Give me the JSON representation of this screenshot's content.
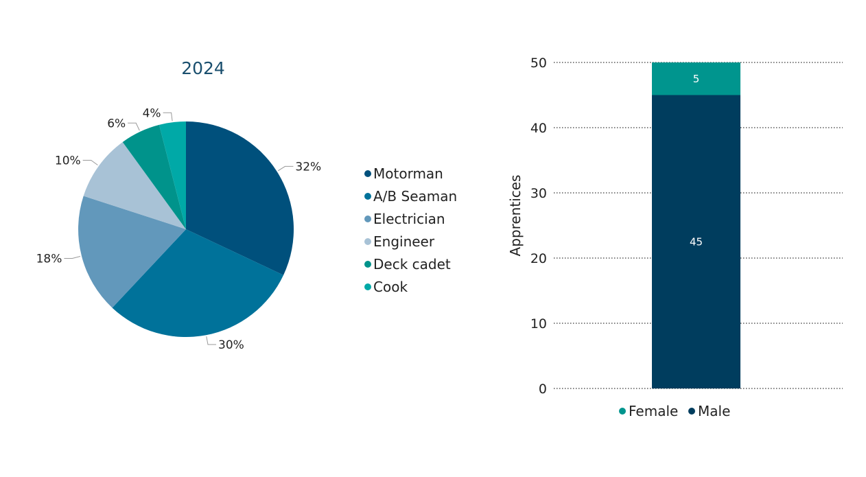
{
  "colors": {
    "motorman": "#00507c",
    "ab_seaman": "#00729a",
    "electrician": "#6298bb",
    "engineer": "#a8c2d6",
    "deck_cadet": "#00938b",
    "cook": "#00a9a7",
    "female": "#00958e",
    "male": "#003d5e",
    "grid": "#333333"
  },
  "chart_data": [
    {
      "type": "pie",
      "title": "2024",
      "categories": [
        "Motorman",
        "A/B Seaman",
        "Electrician",
        "Engineer",
        "Deck cadet",
        "Cook"
      ],
      "values": [
        32,
        30,
        18,
        10,
        6,
        4
      ],
      "labels": [
        "32%",
        "30%",
        "18%",
        "10%",
        "6%",
        "4%"
      ],
      "color_keys": [
        "motorman",
        "ab_seaman",
        "electrician",
        "engineer",
        "deck_cadet",
        "cook"
      ],
      "legend": "right"
    },
    {
      "type": "bar",
      "stacked": true,
      "ylabel": "Apprentices",
      "ylim": [
        0,
        50
      ],
      "yticks": [
        0,
        10,
        20,
        30,
        40,
        50
      ],
      "series": [
        {
          "name": "Male",
          "values": [
            45
          ],
          "label": "45",
          "color_key": "male"
        },
        {
          "name": "Female",
          "values": [
            5
          ],
          "label": "5",
          "color_key": "female"
        }
      ],
      "legend_order": [
        "Female",
        "Male"
      ],
      "legend": "bottom",
      "grid": "dotted horizontal"
    }
  ]
}
